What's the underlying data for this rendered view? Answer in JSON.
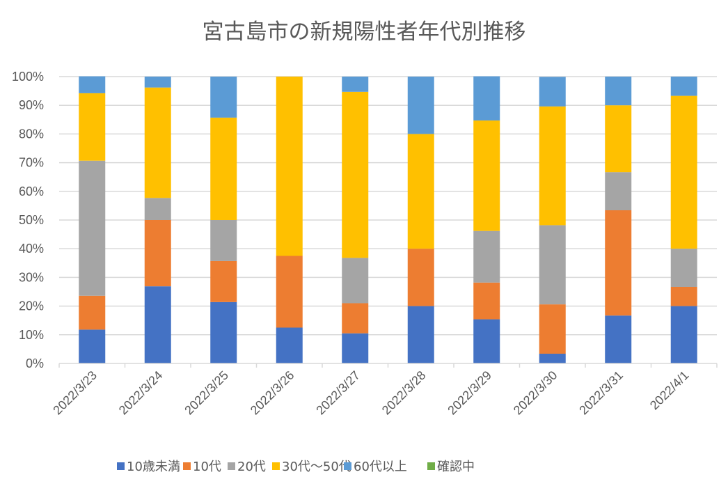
{
  "chart_data": {
    "type": "bar",
    "stacked": "percent",
    "title": "宮古島市の新規陽性者年代別推移",
    "xlabel": "",
    "ylabel": "",
    "ylim": [
      0,
      100
    ],
    "yticks": [
      0,
      10,
      20,
      30,
      40,
      50,
      60,
      70,
      80,
      90,
      100
    ],
    "ytick_labels": [
      "0%",
      "10%",
      "20%",
      "30%",
      "40%",
      "50%",
      "60%",
      "70%",
      "80%",
      "90%",
      "100%"
    ],
    "grid": true,
    "legend_position": "bottom",
    "categories": [
      "2022/3/23",
      "2022/3/24",
      "2022/3/25",
      "2022/3/26",
      "2022/3/27",
      "2022/3/28",
      "2022/3/29",
      "2022/3/30",
      "2022/3/31",
      "2022/4/1"
    ],
    "series": [
      {
        "name": "10歳未満",
        "color": "#4472C4",
        "values": [
          11.8,
          26.9,
          21.4,
          12.5,
          10.5,
          20.0,
          15.4,
          3.4,
          16.7,
          20.0
        ]
      },
      {
        "name": "10代",
        "color": "#ED7D31",
        "values": [
          11.8,
          23.1,
          14.3,
          25.0,
          10.5,
          20.0,
          12.8,
          17.2,
          36.7,
          6.7
        ]
      },
      {
        "name": "20代",
        "color": "#A5A5A5",
        "values": [
          47.1,
          7.7,
          14.3,
          0.0,
          15.8,
          0.0,
          18.0,
          27.6,
          13.3,
          13.3
        ]
      },
      {
        "name": "30代～50代",
        "color": "#FFC000",
        "values": [
          23.5,
          38.5,
          35.7,
          62.5,
          57.9,
          40.0,
          38.5,
          41.4,
          23.3,
          53.3
        ]
      },
      {
        "name": "60代以上",
        "color": "#5B9BD5",
        "values": [
          5.9,
          3.8,
          14.3,
          0.0,
          5.3,
          20.0,
          15.4,
          10.3,
          10.0,
          6.7
        ]
      },
      {
        "name": "確認中",
        "color": "#70AD47",
        "values": [
          0,
          0,
          0,
          0,
          0,
          0,
          0,
          0,
          0,
          0
        ]
      }
    ]
  }
}
